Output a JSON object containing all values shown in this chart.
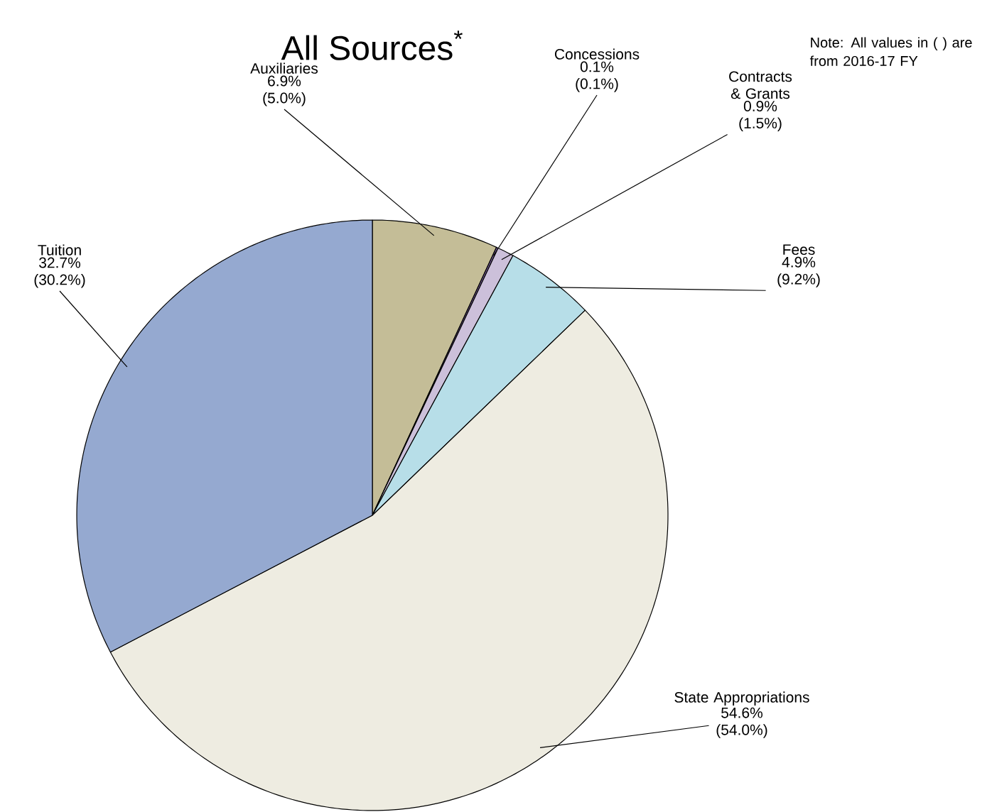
{
  "chart_data": {
    "type": "pie",
    "title": "All Sources$^{*}$",
    "annotations": [
      "Note: All values in ( ) are from 2016-17 FY"
    ],
    "categories": [
      "Auxiliaries",
      "Concessions",
      "Contracts & Grants",
      "Fees",
      "State Appropriations",
      "Tuition"
    ],
    "values": [
      6.9,
      0.1,
      0.9,
      4.9,
      54.6,
      32.7
    ],
    "value_labels": [
      "6.9% (5.0%)",
      "0.1% (0.1%)",
      "0.9% (1.5%)",
      "4.9% (9.2%)",
      "54.6% (54.0%)",
      "32.7% (30.2%)"
    ],
    "colors": [
      "#c4bd97",
      "#8064a2",
      "#ccc0da",
      "#b7dee8",
      "#eeece1",
      "#95a9d0"
    ]
  }
}
